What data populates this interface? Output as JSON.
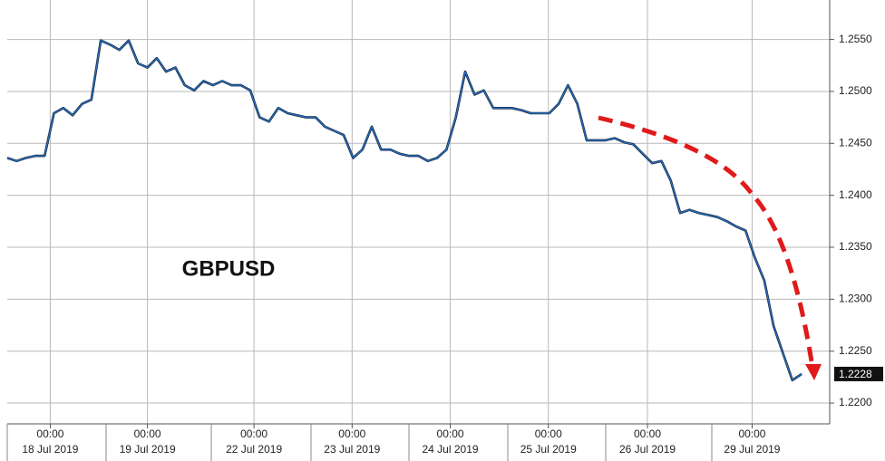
{
  "chart_data": {
    "type": "line",
    "annotation": "GBPUSD",
    "series": [
      {
        "name": "GBPUSD",
        "color": "#2a6ebb",
        "values": [
          1.2436,
          1.2433,
          1.2436,
          1.2438,
          1.2438,
          1.2479,
          1.2484,
          1.2477,
          1.2488,
          1.2492,
          1.2549,
          1.2545,
          1.254,
          1.2549,
          1.2527,
          1.2523,
          1.2532,
          1.2519,
          1.2523,
          1.2506,
          1.2501,
          1.251,
          1.2506,
          1.251,
          1.2506,
          1.2506,
          1.2501,
          1.2475,
          1.2471,
          1.2484,
          1.2479,
          1.2477,
          1.2475,
          1.2475,
          1.2466,
          1.2462,
          1.2458,
          1.2436,
          1.2444,
          1.2466,
          1.2444,
          1.2444,
          1.244,
          1.2438,
          1.2438,
          1.2433,
          1.2436,
          1.2444,
          1.2475,
          1.2519,
          1.2497,
          1.2501,
          1.2484,
          1.2484,
          1.2484,
          1.2482,
          1.2479,
          1.2479,
          1.2479,
          1.2488,
          1.2506,
          1.2488,
          1.2453,
          1.2453,
          1.2453,
          1.2455,
          1.2451,
          1.2449,
          1.244,
          1.2431,
          1.2433,
          1.2414,
          1.2383,
          1.2386,
          1.2383,
          1.2381,
          1.2379,
          1.2375,
          1.237,
          1.2366,
          1.234,
          1.2318,
          1.2274,
          1.2248,
          1.2222,
          1.2228
        ]
      }
    ],
    "xlim": [
      0,
      88
    ],
    "xticks": [
      {
        "value": 4.6,
        "label": "00:00"
      },
      {
        "value": 15.0,
        "label": "00:00"
      },
      {
        "value": 26.4,
        "label": "00:00"
      },
      {
        "value": 36.9,
        "label": "00:00"
      },
      {
        "value": 47.4,
        "label": "00:00"
      },
      {
        "value": 57.9,
        "label": "00:00"
      },
      {
        "value": 68.5,
        "label": "00:00"
      },
      {
        "value": 79.7,
        "label": "00:00"
      }
    ],
    "xtick_dates": [
      "18 Jul 2019",
      "19 Jul 2019",
      "22 Jul 2019",
      "23 Jul 2019",
      "24 Jul 2019",
      "25 Jul 2019",
      "26 Jul 2019",
      "29 Jul 2019"
    ],
    "ylim": [
      1.218,
      1.2588
    ],
    "yticks": [
      {
        "value": 1.22,
        "label": "1.2200"
      },
      {
        "value": 1.225,
        "label": "1.2250"
      },
      {
        "value": 1.23,
        "label": "1.2300"
      },
      {
        "value": 1.235,
        "label": "1.2350"
      },
      {
        "value": 1.24,
        "label": "1.2400"
      },
      {
        "value": 1.245,
        "label": "1.2450"
      },
      {
        "value": 1.25,
        "label": "1.2500"
      },
      {
        "value": 1.255,
        "label": "1.2550"
      }
    ],
    "grid": true
  }
}
